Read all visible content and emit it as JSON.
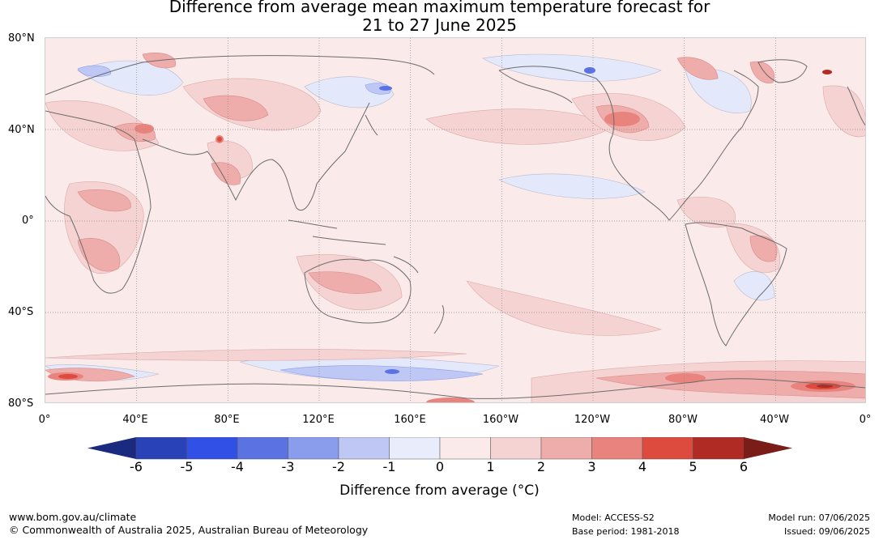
{
  "title": {
    "line1": "Difference from average mean maximum temperature forecast for",
    "line2": "21 to 27 June 2025"
  },
  "map": {
    "lat_labels": [
      "80°N",
      "40°N",
      "0°",
      "40°S",
      "80°S"
    ],
    "lon_labels": [
      "0°",
      "40°E",
      "80°E",
      "120°E",
      "160°E",
      "160°W",
      "120°W",
      "80°W",
      "40°W",
      "0°"
    ]
  },
  "legend": {
    "ticks": [
      "-6",
      "-5",
      "-4",
      "-3",
      "-2",
      "-1",
      "0",
      "1",
      "2",
      "3",
      "4",
      "5",
      "6"
    ],
    "title": "Difference from average (°C)",
    "colors": [
      "#1a2a7e",
      "#2a42b8",
      "#3050e6",
      "#5a72e2",
      "#8a9cec",
      "#bfc8f4",
      "#e9edfb",
      "#fbeaea",
      "#f5d3d3",
      "#eeacaa",
      "#e9837e",
      "#dd4a3e",
      "#b02b24",
      "#7a1d18"
    ]
  },
  "footer": {
    "website": "www.bom.gov.au/climate",
    "copyright": "© Commonwealth of Australia 2025, Australian Bureau of Meteorology",
    "model": "Model: ACCESS-S2",
    "base_period": "Base period: 1981-2018",
    "model_run": "Model run: 07/06/2025",
    "issued": "Issued: 09/06/2025"
  }
}
